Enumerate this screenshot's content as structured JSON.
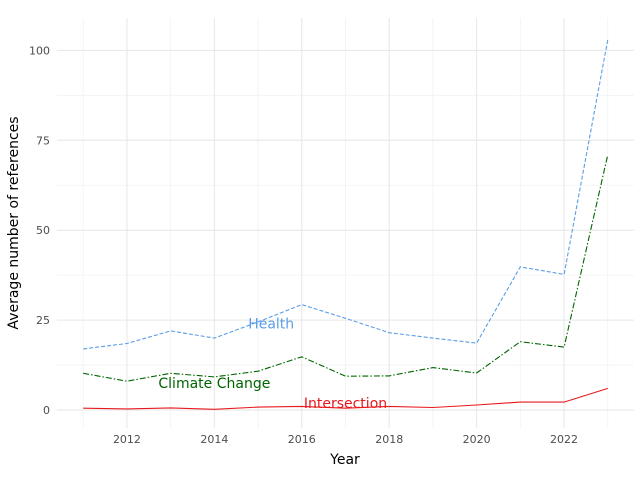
{
  "chart_data": {
    "type": "line",
    "title": "",
    "xlabel": "Year",
    "ylabel": "Average number of references",
    "xlim": [
      2010.4,
      2023.6
    ],
    "ylim": [
      -5,
      109
    ],
    "x_ticks": [
      2012,
      2014,
      2016,
      2018,
      2020,
      2022
    ],
    "y_ticks": [
      0,
      25,
      50,
      75,
      100
    ],
    "grid": true,
    "legend": "none",
    "x": [
      2011,
      2012,
      2013,
      2014,
      2015,
      2016,
      2017,
      2018,
      2019,
      2020,
      2021,
      2022,
      2023
    ],
    "series": [
      {
        "name": "Health",
        "color": "#5b9ee6",
        "dash": "dashed",
        "values": [
          17,
          18.5,
          22,
          20,
          24.5,
          29.3,
          25.5,
          21.5,
          20,
          18.6,
          39.8,
          37.7,
          103
        ],
        "label_at": [
          2015.3,
          24
        ]
      },
      {
        "name": "Climate Change",
        "color": "#006400",
        "dash": "dashdot",
        "values": [
          10.2,
          8,
          10.2,
          9.2,
          10.8,
          14.8,
          9.4,
          9.5,
          11.8,
          10.3,
          19,
          17.5,
          71
        ],
        "label_at": [
          2014,
          7.5
        ]
      },
      {
        "name": "Intersection",
        "color": "#e8191d",
        "dash": "solid",
        "values": [
          0.5,
          0.3,
          0.6,
          0.2,
          0.8,
          1,
          0.5,
          1,
          0.7,
          1.4,
          2.2,
          2.2,
          6
        ],
        "label_at": [
          2017,
          2
        ]
      }
    ]
  }
}
